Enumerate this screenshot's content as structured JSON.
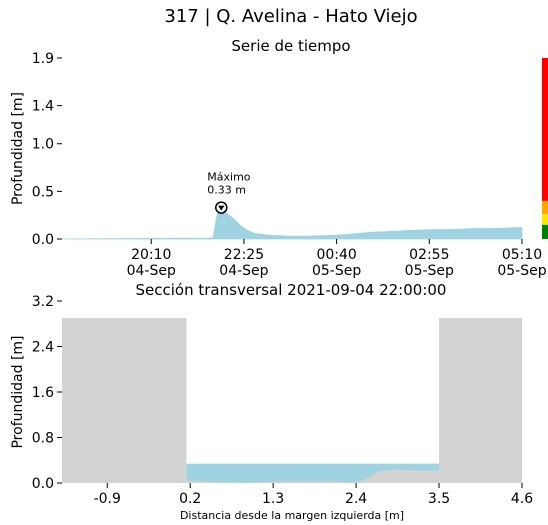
{
  "header": {
    "title": "317 | Q. Avelina - Hato Viejo"
  },
  "chart_data": [
    {
      "type": "area",
      "title": "Serie de tiempo",
      "ylabel": "Profundidad [m]",
      "xlabel": "",
      "ylim": [
        0,
        1.9
      ],
      "xlim": [
        "2021-09-04 18:00",
        "2021-09-05 05:10"
      ],
      "yticks": [
        {
          "value": 0.0,
          "label": "0.0"
        },
        {
          "value": 0.5,
          "label": "0.5"
        },
        {
          "value": 1.0,
          "label": "1.0"
        },
        {
          "value": 1.4,
          "label": "1.4"
        },
        {
          "value": 1.9,
          "label": "1.9"
        }
      ],
      "xticks": [
        {
          "value": "2021-09-04 20:10",
          "label1": "20:10",
          "label2": "04-Sep"
        },
        {
          "value": "2021-09-04 22:25",
          "label1": "22:25",
          "label2": "04-Sep"
        },
        {
          "value": "2021-09-05 00:40",
          "label1": "00:40",
          "label2": "05-Sep"
        },
        {
          "value": "2021-09-05 02:55",
          "label1": "02:55",
          "label2": "05-Sep"
        },
        {
          "value": "2021-09-05 05:10",
          "label1": "05:10",
          "label2": "05-Sep"
        }
      ],
      "series": [
        {
          "color": "#9fd3e1",
          "x": [
            "2021-09-04 18:00",
            "2021-09-04 21:40",
            "2021-09-04 21:45",
            "2021-09-04 21:48",
            "2021-09-04 21:52",
            "2021-09-04 21:58",
            "2021-09-04 22:05",
            "2021-09-04 22:12",
            "2021-09-04 22:20",
            "2021-09-04 22:30",
            "2021-09-04 22:40",
            "2021-09-04 22:50",
            "2021-09-04 23:00",
            "2021-09-04 23:15",
            "2021-09-04 23:30",
            "2021-09-04 23:45",
            "2021-09-05 00:00",
            "2021-09-05 00:20",
            "2021-09-05 00:40",
            "2021-09-05 01:00",
            "2021-09-05 01:30",
            "2021-09-05 02:00",
            "2021-09-05 02:30",
            "2021-09-05 03:00",
            "2021-09-05 03:30",
            "2021-09-05 04:00",
            "2021-09-05 04:30",
            "2021-09-05 05:00",
            "2021-09-05 05:10"
          ],
          "y": [
            0.0,
            0.01,
            0.22,
            0.3,
            0.32,
            0.28,
            0.24,
            0.2,
            0.14,
            0.09,
            0.06,
            0.05,
            0.04,
            0.035,
            0.03,
            0.03,
            0.03,
            0.035,
            0.04,
            0.05,
            0.07,
            0.08,
            0.09,
            0.1,
            0.1,
            0.11,
            0.11,
            0.12,
            0.12
          ]
        }
      ],
      "annotations": [
        {
          "x": "2021-09-04 21:52",
          "y": 0.33,
          "label1": "Máximo",
          "label2": "0.33 m",
          "marker": "circle-down-triangle"
        }
      ],
      "threshold_bar": [
        {
          "from": 0.0,
          "to": 0.15,
          "color": "#008000"
        },
        {
          "from": 0.15,
          "to": 0.26,
          "color": "#ffe800"
        },
        {
          "from": 0.26,
          "to": 0.4,
          "color": "#ffa500"
        },
        {
          "from": 0.4,
          "to": 1.9,
          "color": "#ff0000"
        }
      ],
      "grid": false
    },
    {
      "type": "area",
      "title": "Sección transversal 2021-09-04 22:00:00",
      "xlabel": "Distancia desde la margen izquierda [m]",
      "ylabel": "Profundidad [m]",
      "xlim": [
        -1.5,
        4.6
      ],
      "ylim": [
        0,
        3.2
      ],
      "xticks": [
        {
          "value": -0.9,
          "label": "-0.9"
        },
        {
          "value": 0.2,
          "label": "0.2"
        },
        {
          "value": 1.3,
          "label": "1.3"
        },
        {
          "value": 2.4,
          "label": "2.4"
        },
        {
          "value": 3.5,
          "label": "3.5"
        },
        {
          "value": 4.6,
          "label": "4.6"
        }
      ],
      "yticks": [
        {
          "value": 0.0,
          "label": "0.0"
        },
        {
          "value": 0.8,
          "label": "0.8"
        },
        {
          "value": 1.6,
          "label": "1.6"
        },
        {
          "value": 2.4,
          "label": "2.4"
        },
        {
          "value": 3.2,
          "label": "3.2"
        }
      ],
      "bank_height": 2.9,
      "left_bank_edge": 0.15,
      "right_bank_edge": 3.5,
      "water_level": 0.34,
      "bed_profile": {
        "x": [
          0.15,
          0.3,
          0.6,
          0.9,
          1.3,
          1.7,
          2.0,
          2.2,
          2.35,
          2.5,
          2.7,
          2.9,
          3.2,
          3.5
        ],
        "y": [
          0.05,
          0.03,
          0.01,
          0.0,
          0.02,
          0.03,
          0.03,
          0.02,
          0.0,
          0.05,
          0.2,
          0.24,
          0.22,
          0.22
        ]
      },
      "colors": {
        "ground": "#d3d3d3",
        "water": "#9fd3e1"
      },
      "grid": false
    }
  ]
}
